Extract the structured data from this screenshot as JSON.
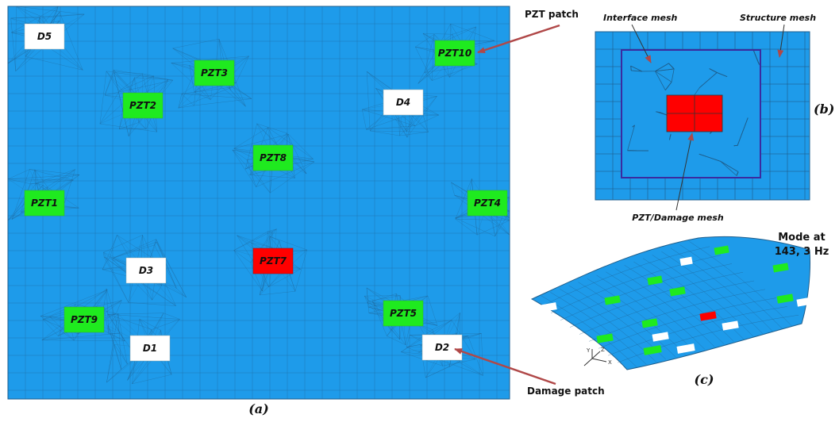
{
  "colors": {
    "mesh_fill": "#1E9BEA",
    "mesh_line": "#1F5E8C",
    "pzt_fill": "#1FEA1F",
    "damage_fill": "#FFFFFF",
    "active_fill": "#FF0000",
    "arrow": "#B04848",
    "interface_box": "#3A2BA0"
  },
  "panel_a": {
    "caption": "(a)",
    "patches": [
      {
        "id": "D5",
        "label": "D5",
        "kind": "damage"
      },
      {
        "id": "PZT10",
        "label": "PZT10",
        "kind": "pzt"
      },
      {
        "id": "PZT3",
        "label": "PZT3",
        "kind": "pzt"
      },
      {
        "id": "PZT2",
        "label": "PZT2",
        "kind": "pzt"
      },
      {
        "id": "D4",
        "label": "D4",
        "kind": "damage"
      },
      {
        "id": "PZT8",
        "label": "PZT8",
        "kind": "pzt"
      },
      {
        "id": "PZT1",
        "label": "PZT1",
        "kind": "pzt"
      },
      {
        "id": "PZT4",
        "label": "PZT4",
        "kind": "pzt"
      },
      {
        "id": "PZT7",
        "label": "PZT7",
        "kind": "active"
      },
      {
        "id": "D3",
        "label": "D3",
        "kind": "damage"
      },
      {
        "id": "PZT5",
        "label": "PZT5",
        "kind": "pzt"
      },
      {
        "id": "PZT9",
        "label": "PZT9",
        "kind": "pzt"
      },
      {
        "id": "D1",
        "label": "D1",
        "kind": "damage"
      },
      {
        "id": "D2",
        "label": "D2",
        "kind": "damage"
      }
    ],
    "pzt_patch_label": "PZT patch",
    "damage_patch_label": "Damage patch"
  },
  "panel_b": {
    "caption": "(b)",
    "interface_mesh_label": "Interface mesh",
    "structure_mesh_label": "Structure mesh",
    "pzt_damage_mesh_label": "PZT/Damage mesh"
  },
  "panel_c": {
    "caption": "(c)",
    "mode_label_line1": "Mode at",
    "mode_label_line2": "143, 3 Hz",
    "axis_y": "Y",
    "axis_z": "Z",
    "axis_x": "X"
  }
}
